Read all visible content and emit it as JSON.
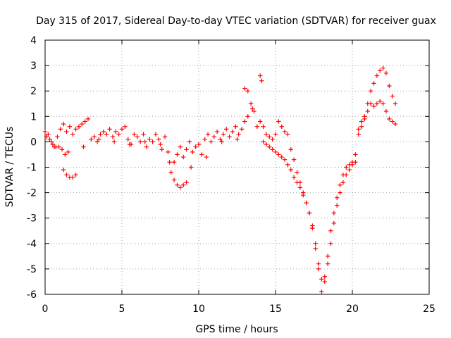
{
  "chart_data": {
    "type": "scatter",
    "title": "Day 315 of 2017, Sidereal Day-to-day VTEC variation (SDTVAR) for receiver guax",
    "xlabel": "GPS time / hours",
    "ylabel": "SDTVAR / TECUs",
    "xlim": [
      0,
      25
    ],
    "ylim": [
      -6,
      4
    ],
    "xticks": [
      0,
      5,
      10,
      15,
      20,
      25
    ],
    "yticks": [
      -6,
      -5,
      -4,
      -3,
      -2,
      -1,
      0,
      1,
      2,
      3,
      4
    ],
    "grid": true,
    "marker": "+",
    "series": [
      {
        "name": "SDTVAR",
        "color": "#ff0000",
        "x": [
          0.0,
          0.2,
          0.4,
          0.6,
          0.8,
          1.0,
          1.2,
          1.4,
          1.6,
          1.8,
          2.0,
          2.2,
          2.4,
          2.6,
          2.8,
          3.0,
          3.2,
          3.4,
          3.6,
          3.8,
          4.0,
          4.2,
          4.4,
          4.6,
          4.8,
          5.0,
          5.2,
          5.4,
          5.6,
          5.8,
          6.0,
          6.2,
          6.4,
          6.6,
          6.8,
          7.0,
          7.2,
          7.4,
          7.6,
          7.8,
          8.0,
          8.2,
          8.4,
          8.6,
          8.8,
          9.0,
          9.2,
          9.4,
          9.6,
          9.8,
          10.0,
          10.2,
          10.4,
          10.6,
          10.8,
          11.0,
          11.2,
          11.4,
          11.6,
          11.8,
          12.0,
          12.2,
          12.4,
          12.6,
          12.8,
          13.0,
          13.2,
          13.4,
          13.6,
          13.8,
          14.0,
          14.2,
          14.4,
          14.6,
          14.8,
          15.0,
          15.2,
          15.4,
          15.6,
          15.8,
          16.0,
          16.2,
          16.4,
          16.6,
          16.8,
          17.0,
          17.2,
          17.4,
          17.6,
          17.8,
          18.0,
          18.2,
          18.4,
          18.6,
          18.8,
          19.0,
          19.2,
          19.4,
          19.6,
          19.8,
          20.0,
          20.2,
          20.4,
          20.6,
          20.8,
          21.0,
          21.2,
          21.4,
          21.6,
          21.8,
          22.0,
          22.2,
          22.4,
          22.6,
          22.8,
          1.2,
          1.4,
          1.6,
          1.8,
          2.0,
          8.4,
          8.6,
          8.8,
          9.0,
          9.2,
          14.2,
          14.4,
          14.6,
          14.8,
          15.0,
          15.2,
          15.4,
          15.6,
          15.8,
          16.0,
          16.2,
          16.4,
          16.6,
          16.8,
          17.0,
          17.2,
          17.4,
          17.6,
          17.8,
          18.0,
          18.2,
          18.4,
          18.6,
          18.8,
          19.0,
          19.2,
          19.4,
          19.6,
          19.8,
          20.0,
          20.2,
          20.4,
          20.6,
          20.8,
          21.0,
          21.2,
          21.4,
          21.6,
          21.8,
          22.0,
          22.2,
          22.4,
          22.6,
          22.8,
          0.1,
          0.3,
          0.5,
          0.7,
          0.9,
          1.1,
          1.3,
          1.5,
          2.5,
          3.5,
          4.5,
          5.5,
          6.5,
          7.5,
          8.1,
          9.5,
          10.5,
          11.5,
          12.5,
          13.0,
          13.2,
          13.5,
          14.0,
          14.1
        ],
        "y": [
          0.4,
          0.3,
          0.0,
          -0.2,
          0.2,
          0.5,
          0.7,
          0.4,
          0.6,
          0.3,
          0.5,
          0.6,
          0.7,
          0.8,
          0.9,
          0.1,
          0.2,
          0.0,
          0.3,
          0.4,
          0.3,
          0.5,
          0.2,
          0.4,
          0.3,
          0.5,
          0.6,
          0.1,
          -0.1,
          0.3,
          0.2,
          0.0,
          0.3,
          -0.2,
          0.1,
          0.0,
          0.3,
          0.1,
          -0.3,
          0.2,
          -0.4,
          -1.2,
          -0.8,
          -0.5,
          -0.2,
          -0.6,
          -0.3,
          0.0,
          -0.4,
          -0.2,
          -0.1,
          -0.5,
          0.1,
          0.3,
          0.0,
          0.2,
          0.4,
          0.1,
          0.3,
          0.5,
          0.2,
          0.4,
          0.6,
          0.3,
          0.5,
          0.8,
          1.0,
          1.5,
          1.2,
          0.6,
          0.8,
          0.6,
          0.3,
          0.2,
          0.1,
          0.3,
          0.8,
          0.6,
          0.4,
          0.3,
          -0.3,
          -0.7,
          -1.2,
          -1.6,
          -2.0,
          -2.4,
          -2.8,
          -3.4,
          -4.0,
          -4.8,
          -5.4,
          -5.3,
          -4.5,
          -3.5,
          -2.8,
          -2.2,
          -1.7,
          -1.3,
          -1.0,
          -0.9,
          -0.8,
          -0.5,
          0.3,
          0.6,
          0.9,
          1.2,
          1.5,
          1.4,
          1.5,
          1.6,
          1.5,
          1.2,
          0.9,
          0.8,
          0.7,
          -1.1,
          -1.3,
          -1.4,
          -1.4,
          -1.3,
          -1.5,
          -1.7,
          -1.8,
          -1.7,
          -1.6,
          0.0,
          -0.1,
          -0.2,
          -0.3,
          -0.4,
          -0.5,
          -0.6,
          -0.7,
          -0.9,
          -1.1,
          -1.4,
          -1.6,
          -1.8,
          -2.1,
          -2.4,
          -2.8,
          -3.3,
          -4.2,
          -5.0,
          -5.9,
          -5.5,
          -4.8,
          -4.0,
          -3.2,
          -2.5,
          -2.0,
          -1.6,
          -1.3,
          -1.1,
          -0.9,
          -0.8,
          0.5,
          0.8,
          1.0,
          1.5,
          2.0,
          2.3,
          2.6,
          2.8,
          2.9,
          2.7,
          2.2,
          1.8,
          1.5,
          0.2,
          0.1,
          -0.1,
          -0.2,
          -0.2,
          -0.3,
          -0.5,
          -0.4,
          -0.2,
          0.1,
          0.0,
          -0.1,
          0.0,
          -0.1,
          -0.8,
          -1.0,
          -0.6,
          0.0,
          0.1,
          2.1,
          2.0,
          1.3,
          2.6,
          2.4
        ]
      }
    ]
  }
}
